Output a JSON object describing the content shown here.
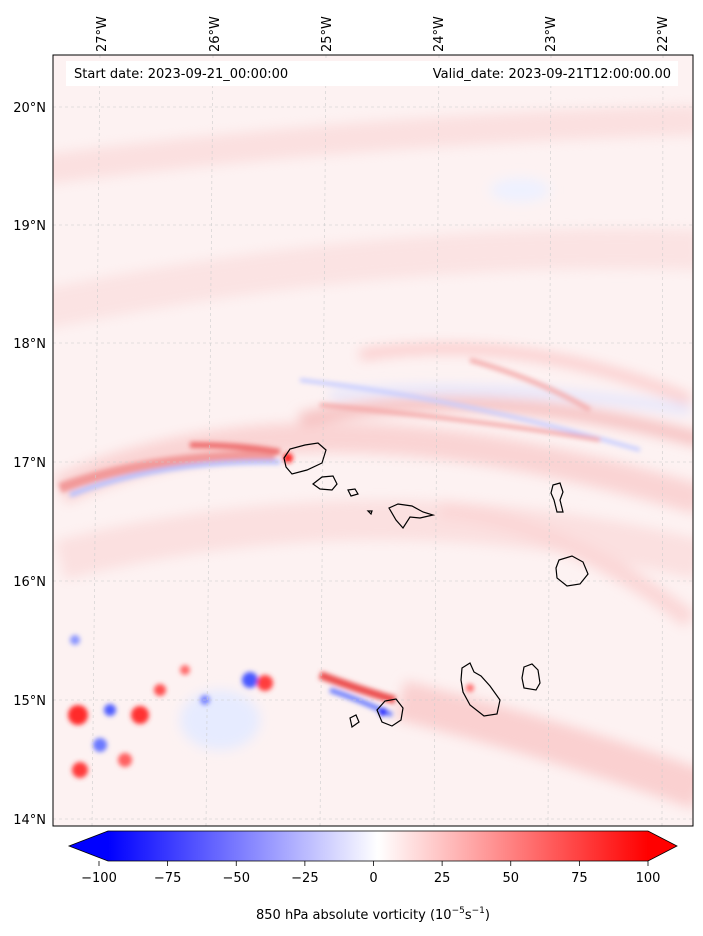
{
  "header": {
    "start_date": "Start date: 2023-09-21_00:00:00",
    "valid_date": "Valid_date: 2023-09-21T12:00:00.00"
  },
  "axes": {
    "lon_labels": [
      "27°W",
      "26°W",
      "25°W",
      "24°W",
      "23°W",
      "22°W"
    ],
    "lat_labels": [
      "20°N",
      "19°N",
      "18°N",
      "17°N",
      "16°N",
      "15°N",
      "14°N"
    ]
  },
  "colorbar": {
    "label_main": "850 hPa absolute vorticity (10",
    "label_exp1": "−5",
    "label_mid": "s",
    "label_exp2": "−1",
    "label_end": ")",
    "ticks": [
      "−100",
      "−75",
      "−50",
      "−25",
      "0",
      "25",
      "50",
      "75",
      "100"
    ],
    "range": [
      -100,
      100
    ],
    "colors": {
      "low": "#0000ff",
      "mid": "#ffffff",
      "high": "#ff0000"
    }
  },
  "map": {
    "projection": "lat-lon",
    "extent_lon": [
      -27.4,
      -21.8
    ],
    "extent_lat": [
      13.95,
      20.45
    ],
    "features": [
      "coastlines",
      "gridlines"
    ]
  }
}
